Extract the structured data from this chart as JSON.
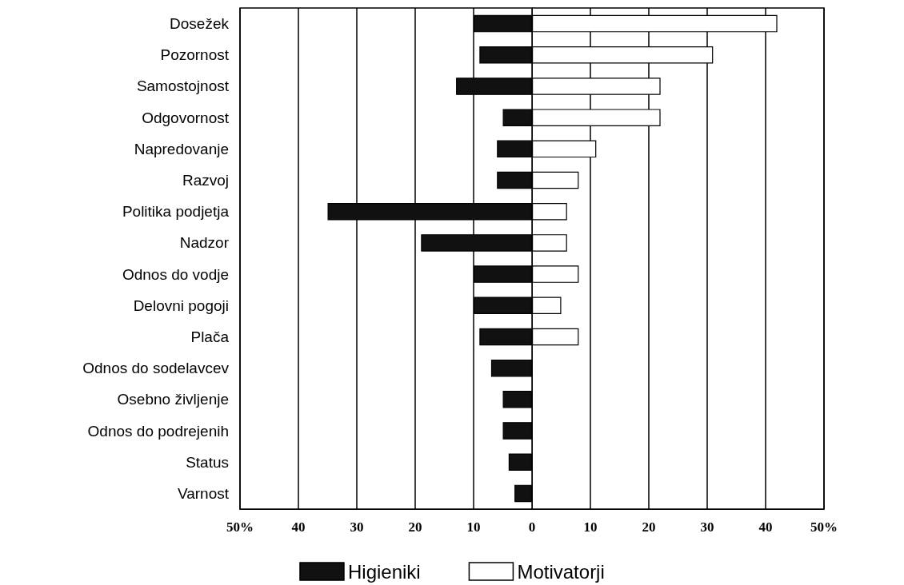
{
  "chart_data": {
    "type": "bar",
    "orientation": "horizontal",
    "categories": [
      "Dosežek",
      "Pozornost",
      "Samostojnost",
      "Odgovornost",
      "Napredovanje",
      "Razvoj",
      "Politika podjetja",
      "Nadzor",
      "Odnos do vodje",
      "Delovni pogoji",
      "Plača",
      "Odnos do sodelavcev",
      "Osebno življenje",
      "Odnos do podrejenih",
      "Status",
      "Varnost"
    ],
    "series": [
      {
        "name": "Higieniki",
        "color": "#111111",
        "values": [
          -10,
          -9,
          -13,
          -5,
          -6,
          -6,
          -35,
          -19,
          -10,
          -10,
          -9,
          -7,
          -5,
          -5,
          -4,
          -3
        ]
      },
      {
        "name": "Motivatorji",
        "color": "#ffffff",
        "values": [
          42,
          31,
          22,
          22,
          11,
          8,
          6,
          6,
          8,
          5,
          8,
          null,
          null,
          null,
          null,
          null
        ]
      }
    ],
    "xlim": [
      -50,
      50
    ],
    "xticks": [
      {
        "value": -50,
        "label": "50%"
      },
      {
        "value": -40,
        "label": "40"
      },
      {
        "value": -30,
        "label": "30"
      },
      {
        "value": -20,
        "label": "20"
      },
      {
        "value": -10,
        "label": "10"
      },
      0,
      10,
      20,
      30,
      40,
      {
        "value": 50,
        "label": "50%"
      }
    ],
    "stacked": true,
    "grid": "x",
    "legend": "bottom"
  }
}
